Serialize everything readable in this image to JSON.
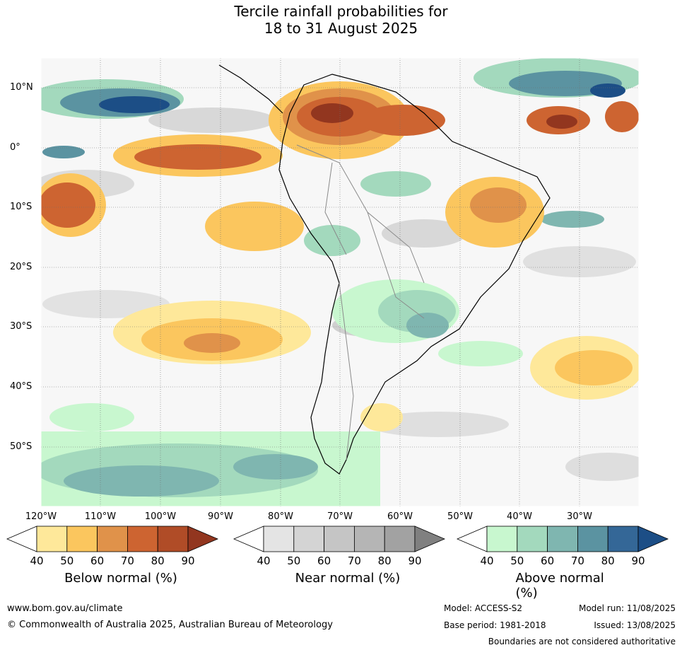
{
  "title": {
    "line1": "Tercile rainfall probabilities for",
    "line2": "18 to 31 August 2025"
  },
  "map": {
    "lat_labels": [
      "10°N",
      "0°",
      "10°S",
      "20°S",
      "30°S",
      "40°S",
      "50°S"
    ],
    "lon_labels": [
      "120°W",
      "110°W",
      "100°W",
      "90°W",
      "80°W",
      "70°W",
      "60°W",
      "50°W",
      "40°W",
      "30°W"
    ],
    "region": "South America",
    "gridlines": true
  },
  "legends": [
    {
      "title": "Below normal (%)",
      "ticks": [
        "40",
        "50",
        "60",
        "70",
        "80",
        "90"
      ],
      "colors": [
        "#ffffff",
        "#fee89a",
        "#fbc65e",
        "#e0924a",
        "#cd6431",
        "#b04c27",
        "#92361f"
      ]
    },
    {
      "title": "Near normal (%)",
      "ticks": [
        "40",
        "50",
        "60",
        "70",
        "80",
        "90"
      ],
      "colors": [
        "#ffffff",
        "#e4e4e4",
        "#d4d4d4",
        "#c5c5c5",
        "#b5b5b5",
        "#a2a2a2",
        "#808080"
      ]
    },
    {
      "title": "Above normal (%)",
      "ticks": [
        "40",
        "50",
        "60",
        "70",
        "80",
        "90"
      ],
      "colors": [
        "#ffffff",
        "#c8f7cf",
        "#a3d9bd",
        "#7fb6b0",
        "#5b93a1",
        "#346797",
        "#1c4e86"
      ]
    }
  ],
  "footer": {
    "website": "www.bom.gov.au/climate",
    "copyright": "© Commonwealth of Australia 2025, Australian Bureau of Meteorology",
    "model": "Model: ACCESS-S2",
    "base_period": "Base period: 1981-2018",
    "model_run": "Model run: 11/08/2025",
    "issued": "Issued: 13/08/2025",
    "disclaimer": "Boundaries are not considered authoritative"
  }
}
